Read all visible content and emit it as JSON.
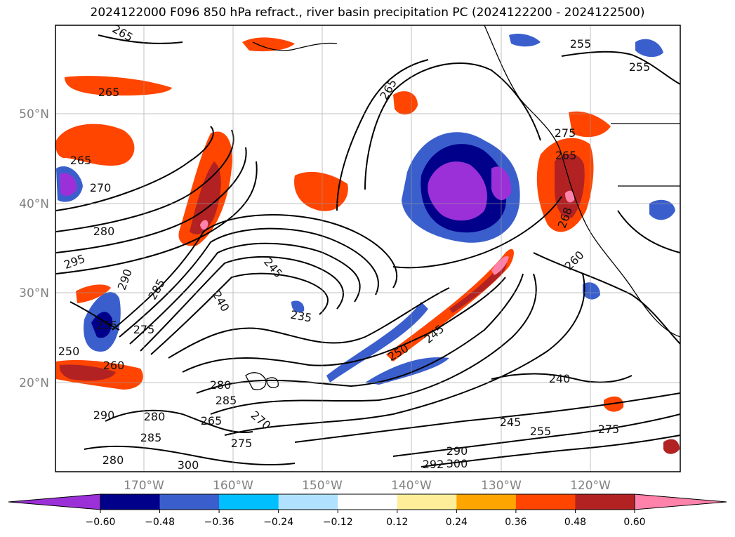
{
  "title": "2024122000 F096 850 hPa refract., river basin precipitation PC (2024122200 - 2024122500)",
  "map": {
    "lat_labels": [
      "50°N",
      "40°N",
      "30°N",
      "20°N"
    ],
    "lon_labels": [
      "170°W",
      "160°W",
      "150°W",
      "140°W",
      "130°W",
      "120°W"
    ],
    "contour_labels": [
      "265",
      "265",
      "265",
      "255",
      "255",
      "265",
      "270",
      "280",
      "295",
      "290",
      "285",
      "240",
      "245",
      "235",
      "255",
      "275",
      "250",
      "260",
      "280",
      "285",
      "265",
      "270",
      "275",
      "290",
      "280",
      "300",
      "280",
      "285",
      "290",
      "300",
      "292",
      "250",
      "245",
      "240",
      "245",
      "255",
      "275",
      "260",
      "265",
      "268",
      "275"
    ]
  },
  "colorbar": {
    "ticks": [
      "−0.60",
      "−0.48",
      "−0.36",
      "−0.24",
      "−0.12",
      "0.12",
      "0.24",
      "0.36",
      "0.48",
      "0.60"
    ],
    "colors": [
      "#9b30d8",
      "#00008b",
      "#3a5fcd",
      "#00bfff",
      "#b0e2ff",
      "#ffffff",
      "#ffee99",
      "#ffa500",
      "#ff4500",
      "#b22222",
      "#ff82ab"
    ]
  }
}
